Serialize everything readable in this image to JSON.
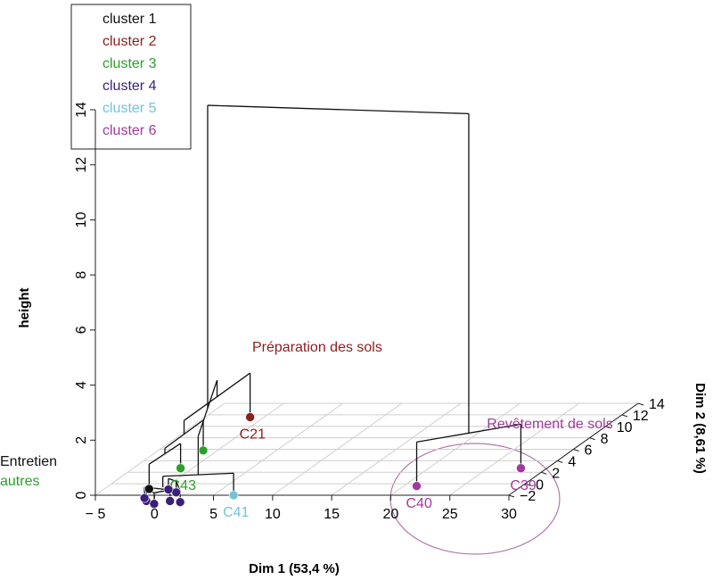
{
  "chart_data": {
    "type": "dendrogram3d",
    "clusters": [
      {
        "name": "cluster 1",
        "color": "#111111"
      },
      {
        "name": "cluster 2",
        "color": "#8b1e1e"
      },
      {
        "name": "cluster 3",
        "color": "#2ca02c"
      },
      {
        "name": "cluster 4",
        "color": "#3b1f7a"
      },
      {
        "name": "cluster 5",
        "color": "#72c4d6"
      },
      {
        "name": "cluster 6",
        "color": "#a3399c"
      }
    ],
    "axis_labels": {
      "x": "Dim 1 (53,4 %)",
      "y": "Dim 2 (8,61 %)",
      "z": "height"
    },
    "xlim": [
      -5,
      30
    ],
    "xticks": [
      {
        "value": -5,
        "label": "− 5"
      },
      0,
      5,
      10,
      15,
      20,
      25,
      30
    ],
    "ylim": [
      -2,
      14
    ],
    "yticks": [
      {
        "value": -2,
        "label": "−2"
      },
      0,
      2,
      4,
      6,
      8,
      10,
      12,
      14
    ],
    "zlim": [
      0,
      14
    ],
    "zticks": [
      0,
      2,
      4,
      6,
      8,
      10,
      12,
      14
    ],
    "grid": true,
    "annotations": [
      {
        "text": "Préparation des sols",
        "color": "#8b1e1e"
      },
      {
        "text": "Revêtement de sols",
        "color": "#a3399c"
      },
      {
        "text": "Entretien",
        "color": "#111111"
      },
      {
        "text": "autres",
        "color": "#2ca02c"
      }
    ],
    "tree": {
      "height": 13.2,
      "children": [
        {
          "height": 2.2,
          "children": [
            {
              "height": 1.6,
              "children": [
                {
                  "name": "C21",
                  "cluster": 1,
                  "dim1": -1.2,
                  "dim2": 11.6
                },
                {
                  "height": 1.1,
                  "children": [
                    {
                      "name": null,
                      "cluster": 2,
                      "dim1": -1.2,
                      "dim2": 5.8
                    },
                    {
                      "height": 0.9,
                      "children": [
                        {
                          "name": "C43",
                          "cluster": 2,
                          "dim1": -1,
                          "dim2": 2.7
                        },
                        {
                          "name": null,
                          "cluster": 0,
                          "dim1": -1.2,
                          "dim2": -0.9
                        }
                      ]
                    }
                  ]
                }
              ]
            },
            {
              "height": 0.8,
              "children": [
                {
                  "name": "C41",
                  "cluster": 4,
                  "dim1": 6.7,
                  "dim2": -2
                },
                {
                  "height": 0.4,
                  "children": [
                    {
                      "name": null,
                      "cluster": 3,
                      "dim1": 0,
                      "dim2": -3
                    },
                    {
                      "name": null,
                      "cluster": 3,
                      "dim1": 1,
                      "dim2": -3.5
                    },
                    {
                      "name": null,
                      "cluster": 3,
                      "dim1": 2,
                      "dim2": -3
                    },
                    {
                      "name": null,
                      "cluster": 3,
                      "dim1": -0.5,
                      "dim2": -2.5
                    },
                    {
                      "name": null,
                      "cluster": 3,
                      "dim1": 3,
                      "dim2": -3.2
                    },
                    {
                      "name": null,
                      "cluster": 3,
                      "dim1": 1.5,
                      "dim2": -1.5
                    },
                    {
                      "name": null,
                      "cluster": 3,
                      "dim1": 0.5,
                      "dim2": -1
                    }
                  ]
                }
              ]
            }
          ]
        },
        {
          "height": 1.6,
          "children": [
            {
              "name": "C40",
              "cluster": 5,
              "dim1": 21.1,
              "dim2": -0.4
            },
            {
              "name": "C39",
              "cluster": 5,
              "dim1": 27.8,
              "dim2": 2.7
            }
          ]
        }
      ]
    }
  }
}
